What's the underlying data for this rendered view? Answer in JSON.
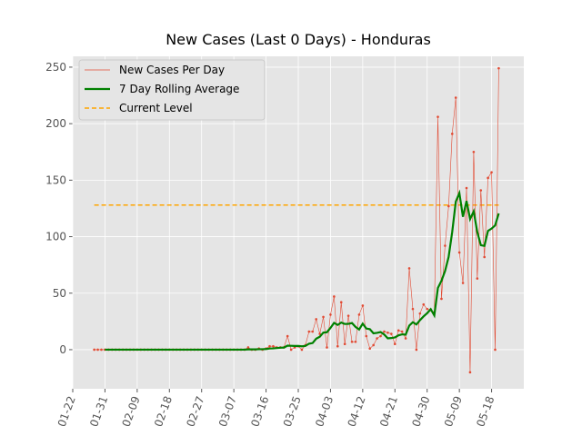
{
  "chart_data": {
    "type": "line",
    "title": "New Cases (Last 0 Days) - Honduras",
    "x": [
      "01-28",
      "01-29",
      "01-30",
      "01-31",
      "02-01",
      "02-02",
      "02-03",
      "02-04",
      "02-05",
      "02-06",
      "02-07",
      "02-08",
      "02-09",
      "02-10",
      "02-11",
      "02-12",
      "02-13",
      "02-14",
      "02-15",
      "02-16",
      "02-17",
      "02-18",
      "02-19",
      "02-20",
      "02-21",
      "02-22",
      "02-23",
      "02-24",
      "02-25",
      "02-26",
      "02-27",
      "02-28",
      "02-29",
      "03-01",
      "03-02",
      "03-03",
      "03-04",
      "03-05",
      "03-06",
      "03-07",
      "03-08",
      "03-09",
      "03-10",
      "03-11",
      "03-12",
      "03-13",
      "03-14",
      "03-15",
      "03-16",
      "03-17",
      "03-18",
      "03-19",
      "03-20",
      "03-21",
      "03-22",
      "03-23",
      "03-24",
      "03-25",
      "03-26",
      "03-27",
      "03-28",
      "03-29",
      "03-30",
      "03-31",
      "04-01",
      "04-02",
      "04-03",
      "04-04",
      "04-05",
      "04-06",
      "04-07",
      "04-08",
      "04-09",
      "04-10",
      "04-11",
      "04-12",
      "04-13",
      "04-14",
      "04-15",
      "04-16",
      "04-17",
      "04-18",
      "04-19",
      "04-20",
      "04-21",
      "04-22",
      "04-23",
      "04-24",
      "04-25",
      "04-26",
      "04-27",
      "04-28",
      "04-29",
      "04-30",
      "05-01",
      "05-02",
      "05-03",
      "05-04",
      "05-05",
      "05-06",
      "05-07",
      "05-08",
      "05-09",
      "05-10",
      "05-11",
      "05-12",
      "05-13",
      "05-14",
      "05-15",
      "05-16",
      "05-17",
      "05-18",
      "05-19",
      "05-20"
    ],
    "series": [
      {
        "name": "New Cases Per Day",
        "color": "#e24a33",
        "values": [
          0,
          0,
          0,
          0,
          0,
          0,
          0,
          0,
          0,
          0,
          0,
          0,
          0,
          0,
          0,
          0,
          0,
          0,
          0,
          0,
          0,
          0,
          0,
          0,
          0,
          0,
          0,
          0,
          0,
          0,
          0,
          0,
          0,
          0,
          0,
          0,
          0,
          0,
          0,
          0,
          0,
          0,
          0,
          2,
          0,
          0,
          1,
          0,
          1,
          3,
          3,
          2,
          2,
          2,
          12,
          0,
          2,
          3,
          0,
          4,
          16,
          16,
          27,
          14,
          29,
          2,
          31,
          47,
          3,
          42,
          5,
          30,
          7,
          7,
          31,
          39,
          12,
          1,
          4,
          10,
          12,
          16,
          15,
          14,
          5,
          17,
          16,
          10,
          72,
          36,
          0,
          32,
          40,
          36,
          35,
          33,
          206,
          45,
          92,
          127,
          191,
          223,
          86,
          59,
          143,
          -20,
          175,
          63,
          141,
          82,
          152,
          157,
          0,
          249
        ]
      },
      {
        "name": "7 Day Rolling Average",
        "color": "green",
        "values": [
          null,
          null,
          null,
          0,
          0,
          0,
          0,
          0,
          0,
          0,
          0,
          0,
          0,
          0,
          0,
          0,
          0,
          0,
          0,
          0,
          0,
          0,
          0,
          0,
          0,
          0,
          0,
          0,
          0,
          0,
          0,
          0,
          0,
          0,
          0,
          0,
          0,
          0,
          0,
          0,
          0,
          0,
          0,
          0.29,
          0.29,
          0.29,
          0.43,
          0.43,
          0.57,
          1,
          1.14,
          1.43,
          1.71,
          1.86,
          3.57,
          3.43,
          3.29,
          3.29,
          3,
          3.29,
          5.29,
          5.86,
          9.71,
          11.43,
          15.14,
          15.43,
          19.29,
          23.71,
          21.86,
          24,
          22.71,
          22.86,
          23.57,
          20.14,
          17.86,
          23,
          18.71,
          18.14,
          14.43,
          14.86,
          15.57,
          13.43,
          10,
          10.29,
          10.86,
          12.71,
          13.57,
          13.29,
          21.29,
          24.29,
          22.29,
          26.14,
          29.43,
          32.29,
          35.86,
          30.29,
          54.57,
          61,
          69.57,
          82,
          104.14,
          131,
          138.57,
          117.57,
          131.57,
          115.57,
          122.43,
          104.14,
          92.43,
          91.86,
          105.14,
          107.14,
          110,
          120.57
        ]
      }
    ],
    "current_level": {
      "name": "Current Level",
      "color": "orange",
      "value": 128
    },
    "xlim": [
      "01-22",
      "05-27"
    ],
    "xticks": [
      "01-22",
      "01-31",
      "02-09",
      "02-18",
      "02-27",
      "03-07",
      "03-16",
      "03-25",
      "04-03",
      "04-12",
      "04-21",
      "04-30",
      "05-09",
      "05-18"
    ],
    "ylim": [
      -34.6,
      259.6
    ],
    "yticks": [
      0,
      50,
      100,
      150,
      200,
      250
    ],
    "grid": true,
    "legend": "upper left"
  }
}
